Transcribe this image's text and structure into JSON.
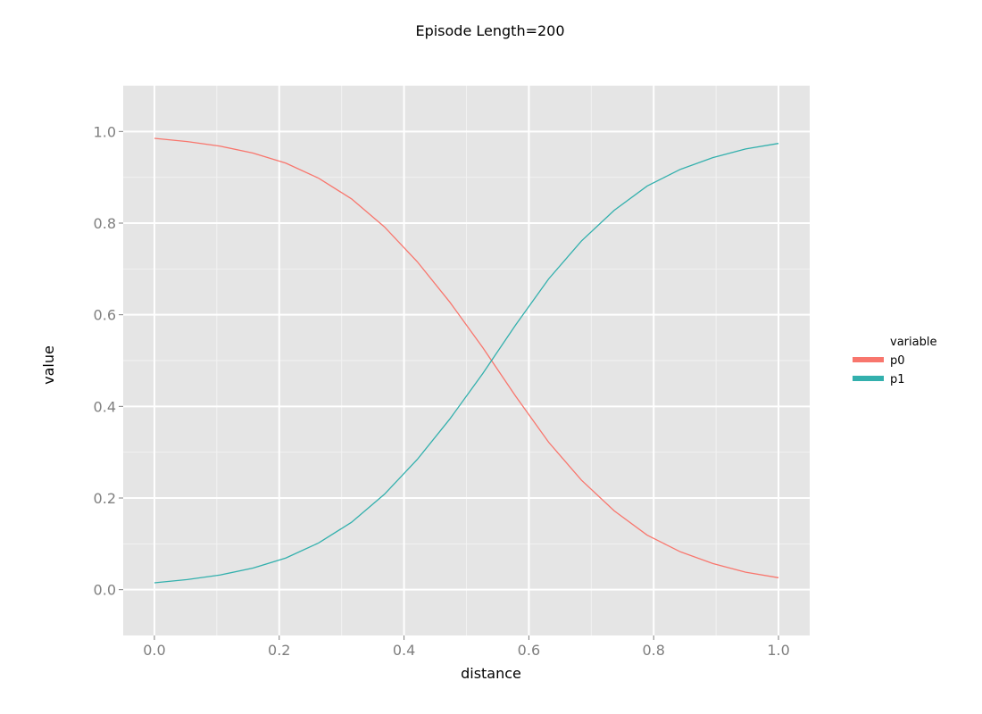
{
  "chart_data": {
    "type": "line",
    "title": "Episode Length=200",
    "xlabel": "distance",
    "ylabel": "value",
    "xlim": [
      -0.05,
      1.05
    ],
    "ylim": [
      -0.1,
      1.1
    ],
    "x_ticks": [
      0.0,
      0.2,
      0.4,
      0.6,
      0.8,
      1.0
    ],
    "x_tick_labels": [
      "0.0",
      "0.2",
      "0.4",
      "0.6",
      "0.8",
      "1.0"
    ],
    "y_ticks": [
      0.0,
      0.2,
      0.4,
      0.6,
      0.8,
      1.0
    ],
    "y_tick_labels": [
      "0.0",
      "0.2",
      "0.4",
      "0.6",
      "0.8",
      "1.0"
    ],
    "grid": true,
    "background_color": "#e5e5e5",
    "legend": {
      "title": "variable",
      "placement": "right"
    },
    "x": [
      0.0,
      0.0526,
      0.1053,
      0.1579,
      0.2105,
      0.2632,
      0.3158,
      0.3684,
      0.4211,
      0.4737,
      0.5263,
      0.5789,
      0.6316,
      0.6842,
      0.7368,
      0.7895,
      0.8421,
      0.8947,
      0.9474,
      1.0
    ],
    "series": [
      {
        "name": "p0",
        "color": "#f8766d",
        "values": [
          0.985,
          0.978,
          0.968,
          0.953,
          0.931,
          0.898,
          0.853,
          0.792,
          0.716,
          0.627,
          0.528,
          0.422,
          0.322,
          0.239,
          0.172,
          0.119,
          0.083,
          0.057,
          0.038,
          0.026
        ]
      },
      {
        "name": "p1",
        "color": "#33b0ad",
        "values": [
          0.015,
          0.022,
          0.032,
          0.047,
          0.069,
          0.102,
          0.147,
          0.208,
          0.284,
          0.373,
          0.472,
          0.578,
          0.678,
          0.761,
          0.828,
          0.881,
          0.917,
          0.943,
          0.962,
          0.974
        ]
      }
    ]
  }
}
